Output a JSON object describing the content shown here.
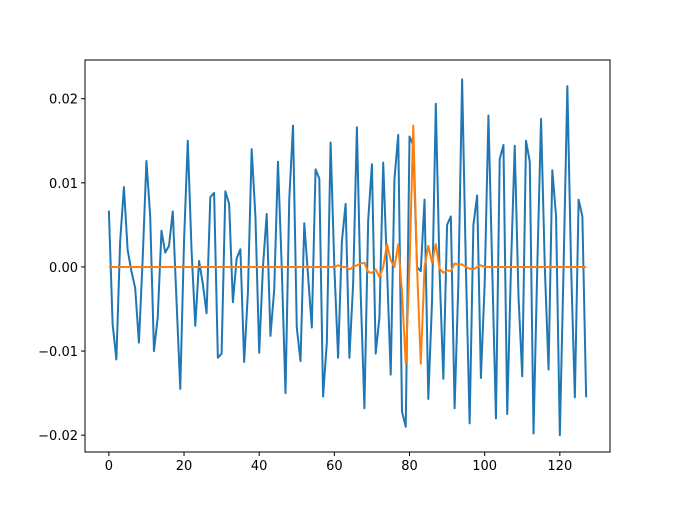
{
  "chart_data": {
    "type": "line",
    "x": [
      0,
      1,
      2,
      3,
      4,
      5,
      6,
      7,
      8,
      9,
      10,
      11,
      12,
      13,
      14,
      15,
      16,
      17,
      18,
      19,
      20,
      21,
      22,
      23,
      24,
      25,
      26,
      27,
      28,
      29,
      30,
      31,
      32,
      33,
      34,
      35,
      36,
      37,
      38,
      39,
      40,
      41,
      42,
      43,
      44,
      45,
      46,
      47,
      48,
      49,
      50,
      51,
      52,
      53,
      54,
      55,
      56,
      57,
      58,
      59,
      60,
      61,
      62,
      63,
      64,
      65,
      66,
      67,
      68,
      69,
      70,
      71,
      72,
      73,
      74,
      75,
      76,
      77,
      78,
      79,
      80,
      81,
      82,
      83,
      84,
      85,
      86,
      87,
      88,
      89,
      90,
      91,
      92,
      93,
      94,
      95,
      96,
      97,
      98,
      99,
      100,
      101,
      102,
      103,
      104,
      105,
      106,
      107,
      108,
      109,
      110,
      111,
      112,
      113,
      114,
      115,
      116,
      117,
      118,
      119,
      120,
      121,
      122,
      123,
      124,
      125,
      126,
      127
    ],
    "series": [
      {
        "color": "#1f77b4",
        "values": [
          0.0067,
          -0.0068,
          -0.011,
          0.003,
          0.0095,
          0.002,
          -0.0005,
          -0.0025,
          -0.009,
          0.001,
          0.0126,
          0.006,
          -0.01,
          -0.006,
          0.0043,
          0.0017,
          0.0025,
          0.0066,
          -0.004,
          -0.0145,
          0.003,
          0.015,
          0.002,
          -0.007,
          0.0007,
          -0.002,
          -0.0055,
          0.0083,
          0.0088,
          -0.0108,
          -0.0103,
          0.009,
          0.0075,
          -0.0042,
          0.001,
          0.0021,
          -0.0113,
          -0.003,
          0.014,
          0.006,
          -0.0102,
          0.0,
          0.0063,
          -0.0082,
          -0.0027,
          0.0125,
          0.0,
          -0.015,
          0.008,
          0.0168,
          -0.0072,
          -0.0112,
          0.0052,
          -0.001,
          -0.0072,
          0.0116,
          0.0105,
          -0.0154,
          -0.009,
          0.0148,
          0.0,
          -0.0108,
          0.003,
          0.0075,
          -0.0108,
          -0.002,
          0.0166,
          -0.003,
          -0.0168,
          0.0055,
          0.0122,
          -0.0103,
          -0.006,
          0.0124,
          0.0,
          -0.0128,
          0.0105,
          0.0157,
          -0.0172,
          -0.019,
          0.0155,
          0.0145,
          0.0,
          -0.0005,
          0.008,
          -0.0157,
          -0.004,
          0.0194,
          -0.0005,
          -0.0133,
          0.005,
          0.006,
          -0.0168,
          -0.002,
          0.0223,
          0.0,
          -0.0186,
          0.005,
          0.0085,
          -0.0132,
          -0.002,
          0.018,
          0.0,
          -0.018,
          0.0128,
          0.0145,
          -0.0175,
          0.0,
          0.0144,
          -0.0035,
          -0.013,
          0.015,
          0.0125,
          -0.0198,
          0.0,
          0.0176,
          0.0,
          -0.0122,
          0.0115,
          0.006,
          -0.02,
          0.0,
          0.0215,
          0.0,
          -0.0155,
          0.008,
          0.006,
          -0.0155
        ]
      },
      {
        "color": "#ff7f0e",
        "values": [
          0,
          0,
          0,
          0,
          0,
          0,
          0,
          0,
          0,
          0,
          0,
          0,
          0,
          0,
          0,
          0,
          0,
          0,
          0,
          0,
          0,
          0,
          0,
          0,
          0,
          0,
          0,
          0,
          0,
          0,
          0,
          0,
          0,
          0,
          0,
          0,
          0,
          0,
          0,
          0,
          0,
          0,
          0,
          0,
          0,
          0,
          0,
          0,
          0,
          0,
          0,
          0,
          0,
          0,
          0,
          0,
          0,
          0,
          0,
          0,
          0,
          0.0002,
          0,
          0,
          -0.0003,
          0,
          0.0002,
          0.0004,
          0.0005,
          -0.0006,
          -0.0007,
          -0.0003,
          -0.0012,
          0.0,
          0.0027,
          0.0008,
          0.0,
          0.0027,
          -0.003,
          -0.0115,
          0.0,
          0.0168,
          0.0,
          -0.0115,
          0.0,
          0.0025,
          0.0005,
          0.0027,
          -0.0002,
          -0.0007,
          -0.0004,
          -0.0005,
          0.0004,
          0.0003,
          0.0003,
          0.0,
          -0.0002,
          -0.0003,
          0.0,
          0.0002,
          0.0,
          0,
          0,
          0,
          0,
          0,
          0,
          0,
          0,
          0,
          0,
          0,
          0,
          0,
          0,
          0,
          0,
          0,
          0,
          0,
          0,
          0,
          0,
          0,
          0,
          0,
          0,
          0
        ]
      }
    ],
    "xlim": [
      -6.35,
      133.35
    ],
    "ylim": [
      -0.022,
      0.0246
    ],
    "xticks": [
      0,
      20,
      40,
      60,
      80,
      100,
      120
    ],
    "yticks": [
      {
        "value": -0.02,
        "label": "−0.02"
      },
      {
        "value": -0.01,
        "label": "−0.01"
      },
      {
        "value": 0,
        "label": "0.00"
      },
      {
        "value": 0.01,
        "label": "0.01"
      },
      {
        "value": 0.02,
        "label": "0.02"
      }
    ]
  }
}
